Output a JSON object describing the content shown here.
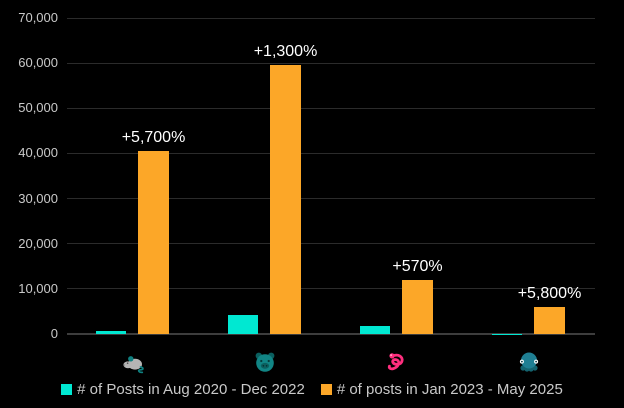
{
  "chart_data": {
    "type": "bar",
    "title": "",
    "xlabel": "",
    "ylabel": "",
    "ylim": [
      0,
      70000
    ],
    "ytick_step": 10000,
    "ytick_labels": [
      "0",
      "10,000",
      "20,000",
      "30,000",
      "40,000",
      "50,000",
      "60,000",
      "70,000"
    ],
    "grid": true,
    "legend_position": "bottom",
    "categories": [
      "mouse",
      "pig-face",
      "snake",
      "octopus"
    ],
    "category_icons": [
      {
        "name": "mouse-icon",
        "primary": "#b5b5b5",
        "accent": "#0f8080"
      },
      {
        "name": "pig-face-icon",
        "primary": "#118585",
        "accent": "#0b5f5f"
      },
      {
        "name": "snake-icon",
        "primary": "#ff2e7e",
        "accent": "#ffffff"
      },
      {
        "name": "octopus-icon",
        "primary": "#1f7f93",
        "accent": "#14636f"
      }
    ],
    "series": [
      {
        "name": "# of Posts in Aug 2020 - Dec 2022",
        "color": "#00e8d2",
        "values": [
          700,
          4250,
          1790,
          100
        ]
      },
      {
        "name": "# of posts in Jan 2023 - May 2025",
        "color": "#fca728",
        "values": [
          40600,
          59500,
          12000,
          5900
        ]
      }
    ],
    "annotations": {
      "series": "# of posts in Jan 2023 - May 2025",
      "labels": [
        "+5,700%",
        "+1,300%",
        "+570%",
        "+5,800%"
      ]
    },
    "colors": {
      "background": "#000000",
      "gridline": "#2b2b2b",
      "zero_axis": "#3d3d3d",
      "tick_text": "#c9c9c9",
      "annotation_text": "#ffffff"
    }
  }
}
